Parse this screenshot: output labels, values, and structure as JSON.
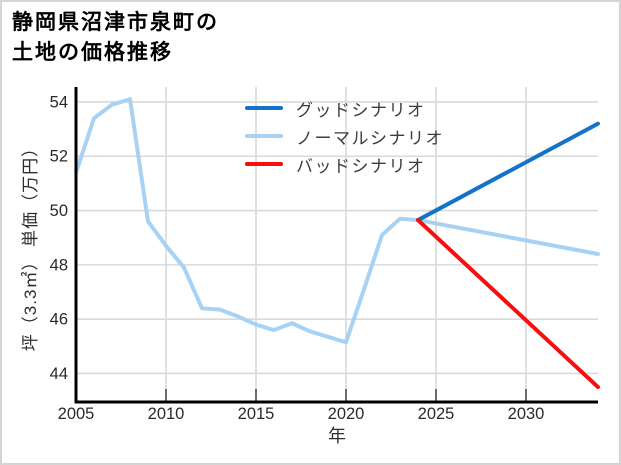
{
  "page": {
    "title_line1": "静岡県沼津市泉町の",
    "title_line2": "土地の価格推移"
  },
  "chart_data": {
    "type": "line",
    "title": "静岡県沼津市泉町の土地の価格推移",
    "xlabel": "年",
    "ylabel": "坪（3.3㎡） 単価（万円）",
    "xlim": [
      2005,
      2034
    ],
    "ylim": [
      43,
      54.5
    ],
    "xticks": [
      2005,
      2010,
      2015,
      2020,
      2025,
      2030
    ],
    "yticks": [
      44,
      46,
      48,
      50,
      52,
      54
    ],
    "grid": true,
    "legend_position": "upper center",
    "colors": {
      "good": "#1273c8",
      "normal": "#a8d2f4",
      "bad": "#f90d0d",
      "gridline": "#d9d9d9",
      "axis": "#000000",
      "tick_text": "#2a2a2a"
    },
    "fork_year": 2024,
    "fork_value": 49.65,
    "series": [
      {
        "name": "グッドシナリオ",
        "color": "#1273c8",
        "x": [
          2024,
          2034
        ],
        "values": [
          49.65,
          53.2
        ]
      },
      {
        "name": "ノーマルシナリオ",
        "color": "#a8d2f4",
        "x": [
          2005,
          2006,
          2007,
          2008,
          2009,
          2010,
          2011,
          2012,
          2013,
          2014,
          2015,
          2016,
          2017,
          2018,
          2019,
          2020,
          2021,
          2022,
          2023,
          2024,
          2034
        ],
        "values": [
          51.4,
          53.4,
          53.9,
          54.1,
          49.6,
          48.7,
          47.9,
          46.4,
          46.35,
          46.1,
          45.8,
          45.6,
          45.85,
          45.55,
          45.35,
          45.15,
          47.1,
          49.1,
          49.7,
          49.65,
          48.4
        ]
      },
      {
        "name": "バッドシナリオ",
        "color": "#f90d0d",
        "x": [
          2024,
          2034
        ],
        "values": [
          49.65,
          43.5
        ]
      }
    ]
  }
}
